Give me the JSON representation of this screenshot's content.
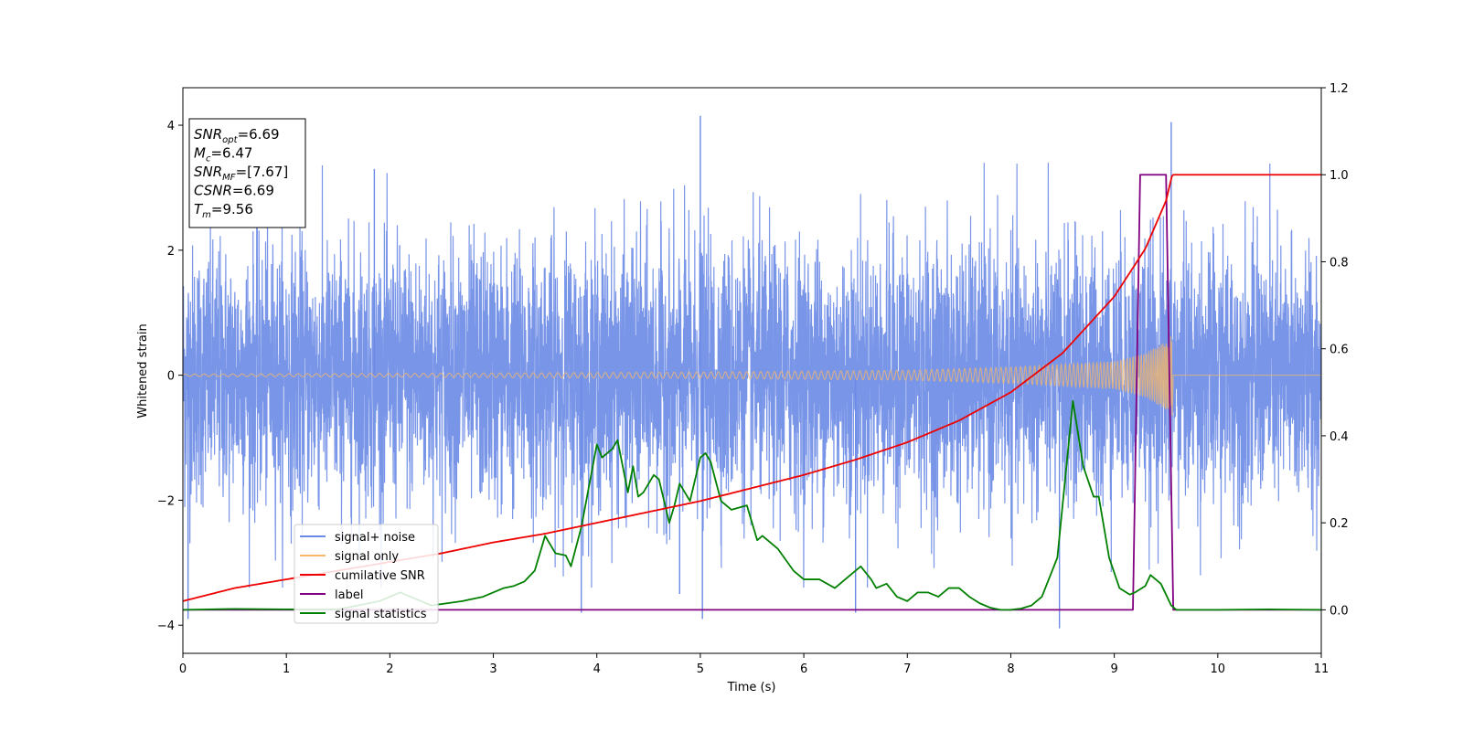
{
  "chart_data": {
    "type": "line",
    "title": "",
    "xlabel": "Time (s)",
    "ylabel": "Whitened strain",
    "xlim": [
      0,
      11
    ],
    "ylim": [
      -4.45,
      4.6
    ],
    "y2lim": [
      -0.1,
      1.2
    ],
    "x_ticks": [
      "0",
      "1",
      "2",
      "3",
      "4",
      "5",
      "6",
      "7",
      "8",
      "9",
      "10",
      "11"
    ],
    "y_ticks": [
      "−4",
      "−2",
      "0",
      "2",
      "4"
    ],
    "y2_ticks": [
      "0.0",
      "0.2",
      "0.4",
      "0.6",
      "0.8",
      "1.0",
      "1.2"
    ],
    "grid": false,
    "legend_placement": "lower-left",
    "colors": {
      "noise": "#6a8ae6",
      "signal": "#f5b86a",
      "csnr": "#ee0000",
      "label": "#800080",
      "stat": "#008000"
    },
    "annotation": [
      {
        "base": "SNR",
        "sub": "opt",
        "value": "=6.69"
      },
      {
        "base": "M",
        "sub": "c",
        "value": "=6.47"
      },
      {
        "base": "SNR",
        "sub": "MF",
        "value": "=[7.67]"
      },
      {
        "base": "CSNR",
        "sub": "",
        "value": "=6.69"
      },
      {
        "base": "T",
        "sub": "m",
        "value": "=9.56"
      }
    ],
    "series": [
      {
        "name": "signal+ noise",
        "axis": "left",
        "kind": "noise",
        "std": 1.25,
        "x_range": [
          0,
          11
        ],
        "peaks": [
          [
            0.05,
            -3.9
          ],
          [
            5.0,
            4.15
          ],
          [
            5.02,
            -3.9
          ],
          [
            9.55,
            4.05
          ],
          [
            8.47,
            -4.05
          ],
          [
            6.5,
            -3.8
          ],
          [
            3.85,
            -3.8
          ],
          [
            1.85,
            3.3
          ],
          [
            4.8,
            -3.5
          ]
        ]
      },
      {
        "name": "signal only",
        "axis": "left",
        "kind": "chirp",
        "amplitude_envelope": [
          [
            0,
            0.02
          ],
          [
            2,
            0.03
          ],
          [
            5,
            0.05
          ],
          [
            7,
            0.08
          ],
          [
            8,
            0.13
          ],
          [
            9,
            0.22
          ],
          [
            9.3,
            0.35
          ],
          [
            9.5,
            0.55
          ],
          [
            9.56,
            0.65
          ],
          [
            9.57,
            0.0
          ],
          [
            11,
            0.0
          ]
        ]
      },
      {
        "name": "cumilative SNR",
        "axis": "right",
        "x": [
          0,
          0.5,
          1,
          1.5,
          2,
          2.5,
          3,
          3.5,
          4,
          4.5,
          5,
          5.5,
          6,
          6.5,
          7,
          7.5,
          8,
          8.5,
          9,
          9.3,
          9.5,
          9.56,
          11
        ],
        "y": [
          0.02,
          0.05,
          0.07,
          0.09,
          0.11,
          0.13,
          0.155,
          0.175,
          0.2,
          0.225,
          0.25,
          0.28,
          0.31,
          0.345,
          0.385,
          0.435,
          0.5,
          0.59,
          0.72,
          0.83,
          0.94,
          1.0,
          1.0
        ]
      },
      {
        "name": "label",
        "axis": "right",
        "x": [
          0,
          9.18,
          9.25,
          9.5,
          9.57,
          11
        ],
        "y": [
          0,
          0,
          1,
          1,
          0,
          0
        ]
      },
      {
        "name": "signal statistics",
        "axis": "right",
        "x": [
          0,
          0.5,
          1,
          1.5,
          1.9,
          2.1,
          2.2,
          2.4,
          2.7,
          2.9,
          3.0,
          3.1,
          3.2,
          3.3,
          3.4,
          3.5,
          3.6,
          3.7,
          3.75,
          3.85,
          4.0,
          4.05,
          4.15,
          4.2,
          4.3,
          4.35,
          4.4,
          4.45,
          4.55,
          4.6,
          4.7,
          4.75,
          4.8,
          4.9,
          5.0,
          5.05,
          5.1,
          5.2,
          5.3,
          5.45,
          5.55,
          5.6,
          5.75,
          5.9,
          6.0,
          6.15,
          6.3,
          6.4,
          6.55,
          6.65,
          6.7,
          6.8,
          6.9,
          7.0,
          7.1,
          7.2,
          7.3,
          7.4,
          7.5,
          7.6,
          7.7,
          7.8,
          7.9,
          8.0,
          8.1,
          8.2,
          8.3,
          8.45,
          8.6,
          8.7,
          8.8,
          8.85,
          8.95,
          9.05,
          9.15,
          9.2,
          9.3,
          9.35,
          9.45,
          9.55,
          9.6,
          10,
          10.5,
          11
        ],
        "y": [
          0.0,
          0.002,
          0.001,
          0.001,
          0.02,
          0.04,
          0.03,
          0.01,
          0.02,
          0.03,
          0.04,
          0.05,
          0.055,
          0.065,
          0.09,
          0.17,
          0.13,
          0.125,
          0.1,
          0.19,
          0.38,
          0.35,
          0.37,
          0.39,
          0.27,
          0.33,
          0.26,
          0.27,
          0.31,
          0.3,
          0.2,
          0.24,
          0.29,
          0.25,
          0.35,
          0.36,
          0.34,
          0.25,
          0.23,
          0.24,
          0.16,
          0.17,
          0.14,
          0.09,
          0.07,
          0.07,
          0.05,
          0.07,
          0.1,
          0.07,
          0.05,
          0.06,
          0.03,
          0.02,
          0.04,
          0.04,
          0.03,
          0.05,
          0.05,
          0.03,
          0.015,
          0.005,
          0.0,
          0.0,
          0.003,
          0.01,
          0.03,
          0.12,
          0.48,
          0.33,
          0.26,
          0.26,
          0.12,
          0.05,
          0.035,
          0.04,
          0.055,
          0.08,
          0.06,
          0.01,
          0.0,
          0.0,
          0.001,
          0.0
        ]
      }
    ]
  }
}
